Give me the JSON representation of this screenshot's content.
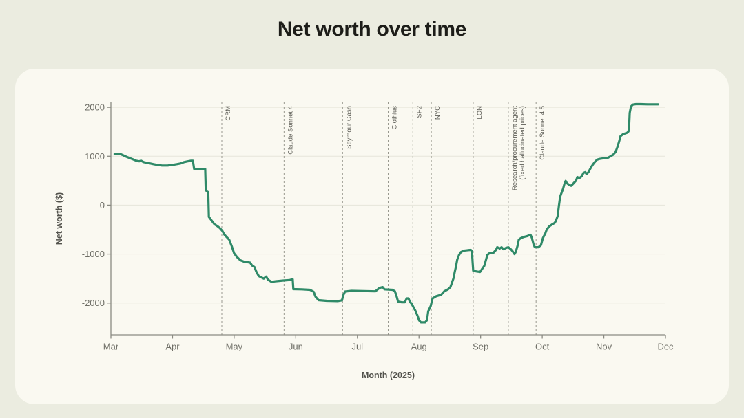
{
  "page": {
    "title": "Net worth over time"
  },
  "colors": {
    "page_background": "#ebece0",
    "card_background": "#faf9f1",
    "title_text": "#1d1d19",
    "axis_line": "#8a8a82",
    "grid_line": "#e6e6da",
    "tick_text": "#6e6e66",
    "axis_title_text": "#52524c",
    "annotation_text": "#5c5c55",
    "annotation_dash": "#98988e",
    "series_line": "#2f8a68"
  },
  "chart_data": {
    "type": "line",
    "title": "Net worth over time",
    "xlabel": "Month (2025)",
    "ylabel": "Net worth ($)",
    "x_tick_labels": [
      "Mar",
      "Apr",
      "May",
      "Jun",
      "Jul",
      "Aug",
      "Sep",
      "Oct",
      "Nov",
      "Dec"
    ],
    "x_tick_positions": [
      0,
      1,
      2,
      3,
      4,
      5,
      6,
      7,
      8,
      9
    ],
    "x_encoding": "months after Mar 2025 tick",
    "y_ticks": [
      2000,
      1000,
      0,
      -1000,
      -2000
    ],
    "xlim": [
      0,
      9
    ],
    "ylim": [
      -2650,
      2100
    ],
    "grid": "horizontal",
    "legend": "none",
    "series": [
      {
        "name": "Net worth ($)",
        "color": "#2f8a68",
        "points": [
          [
            0.06,
            1045
          ],
          [
            0.16,
            1040
          ],
          [
            0.2,
            1020
          ],
          [
            0.25,
            990
          ],
          [
            0.3,
            965
          ],
          [
            0.36,
            935
          ],
          [
            0.41,
            908
          ],
          [
            0.46,
            895
          ],
          [
            0.49,
            908
          ],
          [
            0.53,
            880
          ],
          [
            0.58,
            866
          ],
          [
            0.64,
            852
          ],
          [
            0.69,
            838
          ],
          [
            0.75,
            824
          ],
          [
            0.83,
            810
          ],
          [
            0.92,
            810
          ],
          [
            1.0,
            824
          ],
          [
            1.07,
            838
          ],
          [
            1.13,
            852
          ],
          [
            1.19,
            880
          ],
          [
            1.24,
            894
          ],
          [
            1.3,
            908
          ],
          [
            1.33,
            908
          ],
          [
            1.35,
            740
          ],
          [
            1.45,
            736
          ],
          [
            1.53,
            738
          ],
          [
            1.54,
            310
          ],
          [
            1.56,
            278
          ],
          [
            1.58,
            268
          ],
          [
            1.59,
            -240
          ],
          [
            1.62,
            -290
          ],
          [
            1.68,
            -390
          ],
          [
            1.73,
            -430
          ],
          [
            1.77,
            -470
          ],
          [
            1.81,
            -530
          ],
          [
            1.84,
            -600
          ],
          [
            1.88,
            -655
          ],
          [
            1.92,
            -705
          ],
          [
            1.96,
            -835
          ],
          [
            2.0,
            -985
          ],
          [
            2.05,
            -1065
          ],
          [
            2.1,
            -1125
          ],
          [
            2.16,
            -1155
          ],
          [
            2.26,
            -1175
          ],
          [
            2.29,
            -1230
          ],
          [
            2.33,
            -1265
          ],
          [
            2.36,
            -1360
          ],
          [
            2.4,
            -1450
          ],
          [
            2.48,
            -1500
          ],
          [
            2.52,
            -1460
          ],
          [
            2.55,
            -1525
          ],
          [
            2.61,
            -1570
          ],
          [
            2.67,
            -1555
          ],
          [
            2.8,
            -1540
          ],
          [
            2.9,
            -1530
          ],
          [
            2.95,
            -1515
          ],
          [
            2.96,
            -1715
          ],
          [
            3.1,
            -1720
          ],
          [
            3.23,
            -1730
          ],
          [
            3.29,
            -1770
          ],
          [
            3.32,
            -1870
          ],
          [
            3.37,
            -1940
          ],
          [
            3.5,
            -1955
          ],
          [
            3.68,
            -1960
          ],
          [
            3.75,
            -1945
          ],
          [
            3.77,
            -1845
          ],
          [
            3.8,
            -1765
          ],
          [
            3.9,
            -1750
          ],
          [
            4.1,
            -1755
          ],
          [
            4.29,
            -1760
          ],
          [
            4.36,
            -1690
          ],
          [
            4.41,
            -1675
          ],
          [
            4.44,
            -1720
          ],
          [
            4.57,
            -1730
          ],
          [
            4.61,
            -1760
          ],
          [
            4.64,
            -1875
          ],
          [
            4.66,
            -1970
          ],
          [
            4.72,
            -1985
          ],
          [
            4.77,
            -1985
          ],
          [
            4.8,
            -1905
          ],
          [
            4.83,
            -1905
          ],
          [
            4.85,
            -1970
          ],
          [
            4.88,
            -2015
          ],
          [
            4.91,
            -2085
          ],
          [
            4.94,
            -2155
          ],
          [
            4.98,
            -2270
          ],
          [
            5.0,
            -2350
          ],
          [
            5.03,
            -2395
          ],
          [
            5.1,
            -2395
          ],
          [
            5.13,
            -2350
          ],
          [
            5.15,
            -2170
          ],
          [
            5.19,
            -2060
          ],
          [
            5.22,
            -1905
          ],
          [
            5.28,
            -1860
          ],
          [
            5.36,
            -1830
          ],
          [
            5.41,
            -1760
          ],
          [
            5.47,
            -1720
          ],
          [
            5.51,
            -1675
          ],
          [
            5.53,
            -1605
          ],
          [
            5.56,
            -1495
          ],
          [
            5.58,
            -1365
          ],
          [
            5.6,
            -1255
          ],
          [
            5.62,
            -1115
          ],
          [
            5.65,
            -1015
          ],
          [
            5.68,
            -960
          ],
          [
            5.73,
            -930
          ],
          [
            5.79,
            -920
          ],
          [
            5.84,
            -915
          ],
          [
            5.86,
            -945
          ],
          [
            5.87,
            -1155
          ],
          [
            5.88,
            -1340
          ],
          [
            5.94,
            -1355
          ],
          [
            5.99,
            -1365
          ],
          [
            6.02,
            -1310
          ],
          [
            6.06,
            -1240
          ],
          [
            6.11,
            -1015
          ],
          [
            6.14,
            -985
          ],
          [
            6.21,
            -970
          ],
          [
            6.25,
            -915
          ],
          [
            6.27,
            -860
          ],
          [
            6.31,
            -885
          ],
          [
            6.34,
            -860
          ],
          [
            6.37,
            -900
          ],
          [
            6.41,
            -875
          ],
          [
            6.45,
            -860
          ],
          [
            6.49,
            -900
          ],
          [
            6.52,
            -945
          ],
          [
            6.55,
            -1000
          ],
          [
            6.57,
            -960
          ],
          [
            6.6,
            -830
          ],
          [
            6.62,
            -705
          ],
          [
            6.65,
            -675
          ],
          [
            6.7,
            -650
          ],
          [
            6.75,
            -635
          ],
          [
            6.81,
            -605
          ],
          [
            6.83,
            -660
          ],
          [
            6.86,
            -805
          ],
          [
            6.88,
            -860
          ],
          [
            6.94,
            -860
          ],
          [
            6.98,
            -815
          ],
          [
            7.01,
            -675
          ],
          [
            7.05,
            -575
          ],
          [
            7.07,
            -505
          ],
          [
            7.11,
            -435
          ],
          [
            7.16,
            -395
          ],
          [
            7.2,
            -365
          ],
          [
            7.22,
            -325
          ],
          [
            7.25,
            -225
          ],
          [
            7.27,
            -15
          ],
          [
            7.29,
            170
          ],
          [
            7.31,
            240
          ],
          [
            7.34,
            340
          ],
          [
            7.36,
            435
          ],
          [
            7.38,
            495
          ],
          [
            7.4,
            450
          ],
          [
            7.44,
            410
          ],
          [
            7.47,
            395
          ],
          [
            7.5,
            435
          ],
          [
            7.55,
            505
          ],
          [
            7.57,
            575
          ],
          [
            7.6,
            550
          ],
          [
            7.64,
            590
          ],
          [
            7.67,
            660
          ],
          [
            7.7,
            675
          ],
          [
            7.72,
            635
          ],
          [
            7.75,
            675
          ],
          [
            7.78,
            745
          ],
          [
            7.8,
            790
          ],
          [
            7.83,
            845
          ],
          [
            7.86,
            890
          ],
          [
            7.89,
            930
          ],
          [
            7.93,
            945
          ],
          [
            8.01,
            960
          ],
          [
            8.07,
            970
          ],
          [
            8.11,
            1000
          ],
          [
            8.15,
            1030
          ],
          [
            8.19,
            1085
          ],
          [
            8.22,
            1185
          ],
          [
            8.25,
            1310
          ],
          [
            8.27,
            1410
          ],
          [
            8.31,
            1450
          ],
          [
            8.38,
            1480
          ],
          [
            8.4,
            1505
          ],
          [
            8.41,
            1605
          ],
          [
            8.42,
            1885
          ],
          [
            8.44,
            2015
          ],
          [
            8.47,
            2055
          ],
          [
            8.52,
            2065
          ],
          [
            8.6,
            2065
          ],
          [
            8.71,
            2060
          ],
          [
            8.88,
            2060
          ]
        ]
      }
    ],
    "annotations": [
      {
        "x": 1.8,
        "lines": [
          "CRM"
        ]
      },
      {
        "x": 2.81,
        "lines": [
          "Claude Sonnet 4"
        ]
      },
      {
        "x": 3.76,
        "lines": [
          "Seymour Cash"
        ]
      },
      {
        "x": 4.5,
        "lines": [
          "Clothius"
        ]
      },
      {
        "x": 4.9,
        "lines": [
          "SF2"
        ]
      },
      {
        "x": 5.2,
        "lines": [
          "NYC"
        ]
      },
      {
        "x": 5.88,
        "lines": [
          "LON"
        ]
      },
      {
        "x": 6.45,
        "lines": [
          "Research/procurement agent",
          "(fixed hallucinated prices)"
        ]
      },
      {
        "x": 6.9,
        "lines": [
          "Claude Sonnet 4.5"
        ]
      }
    ]
  }
}
